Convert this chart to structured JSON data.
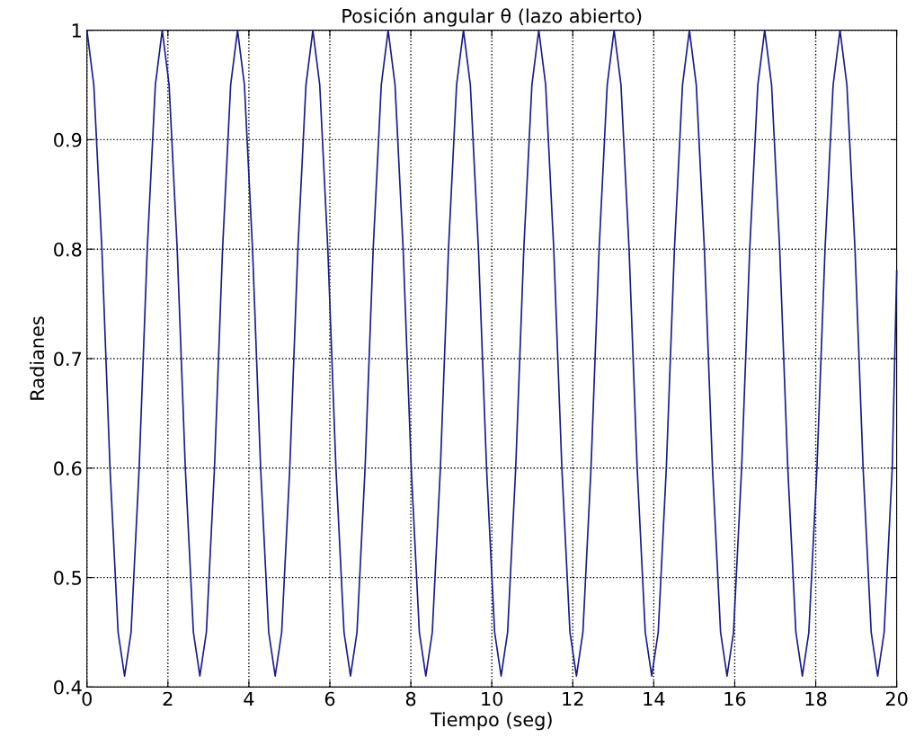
{
  "chart_data": {
    "type": "line",
    "title": "Posición angular θ (lazo abierto)",
    "xlabel": "Tiempo (seg)",
    "ylabel": "Radianes",
    "xlim": [
      0,
      20
    ],
    "xticks": [
      0,
      2,
      4,
      6,
      8,
      10,
      12,
      14,
      16,
      18,
      20
    ],
    "ylim": [
      0.4,
      1
    ],
    "yticks": [
      0.4,
      0.5,
      0.6,
      0.7,
      0.8,
      0.9,
      1
    ],
    "grid": true,
    "line_style": "solid",
    "marker": "none",
    "series": [
      {
        "color": "#1a1a8c",
        "x": [
          0,
          0.17,
          0.37,
          0.57,
          0.77,
          0.93,
          1.09,
          1.29,
          1.49,
          1.69,
          1.86,
          2.03,
          2.23,
          2.43,
          2.63,
          2.79,
          2.95,
          3.15,
          3.35,
          3.55,
          3.72,
          3.89,
          4.09,
          4.29,
          4.49,
          4.65,
          4.81,
          5.01,
          5.21,
          5.41,
          5.58,
          5.75,
          5.95,
          6.15,
          6.35,
          6.51,
          6.67,
          6.87,
          7.07,
          7.27,
          7.44,
          7.61,
          7.81,
          8.01,
          8.21,
          8.37,
          8.53,
          8.73,
          8.93,
          9.13,
          9.3,
          9.47,
          9.67,
          9.87,
          10.07,
          10.23,
          10.39,
          10.59,
          10.79,
          10.99,
          11.16,
          11.33,
          11.53,
          11.73,
          11.93,
          12.09,
          12.25,
          12.45,
          12.65,
          12.85,
          13.02,
          13.19,
          13.39,
          13.59,
          13.79,
          13.95,
          14.11,
          14.31,
          14.51,
          14.71,
          14.88,
          15.05,
          15.25,
          15.45,
          15.65,
          15.81,
          15.97,
          16.17,
          16.37,
          16.57,
          16.74,
          16.91,
          17.11,
          17.31,
          17.51,
          17.67,
          17.83,
          18.03,
          18.23,
          18.43,
          18.6,
          18.77,
          18.97,
          19.17,
          19.37,
          19.53,
          19.69,
          19.89,
          20
        ],
        "values": [
          1,
          0.95,
          0.8,
          0.6,
          0.45,
          0.41,
          0.45,
          0.6,
          0.8,
          0.95,
          1,
          0.95,
          0.8,
          0.6,
          0.45,
          0.41,
          0.45,
          0.6,
          0.8,
          0.95,
          1,
          0.95,
          0.8,
          0.6,
          0.45,
          0.41,
          0.45,
          0.6,
          0.8,
          0.95,
          1,
          0.95,
          0.8,
          0.6,
          0.45,
          0.41,
          0.45,
          0.6,
          0.8,
          0.95,
          1,
          0.95,
          0.8,
          0.6,
          0.45,
          0.41,
          0.45,
          0.6,
          0.8,
          0.95,
          1,
          0.95,
          0.8,
          0.6,
          0.45,
          0.41,
          0.45,
          0.6,
          0.8,
          0.95,
          1,
          0.95,
          0.8,
          0.6,
          0.45,
          0.41,
          0.45,
          0.6,
          0.8,
          0.95,
          1,
          0.95,
          0.8,
          0.6,
          0.45,
          0.41,
          0.45,
          0.6,
          0.8,
          0.95,
          1,
          0.95,
          0.8,
          0.6,
          0.45,
          0.41,
          0.45,
          0.6,
          0.8,
          0.95,
          1,
          0.95,
          0.8,
          0.6,
          0.45,
          0.41,
          0.45,
          0.6,
          0.8,
          0.95,
          1,
          0.95,
          0.8,
          0.6,
          0.45,
          0.41,
          0.45,
          0.6,
          0.78
        ]
      }
    ]
  }
}
